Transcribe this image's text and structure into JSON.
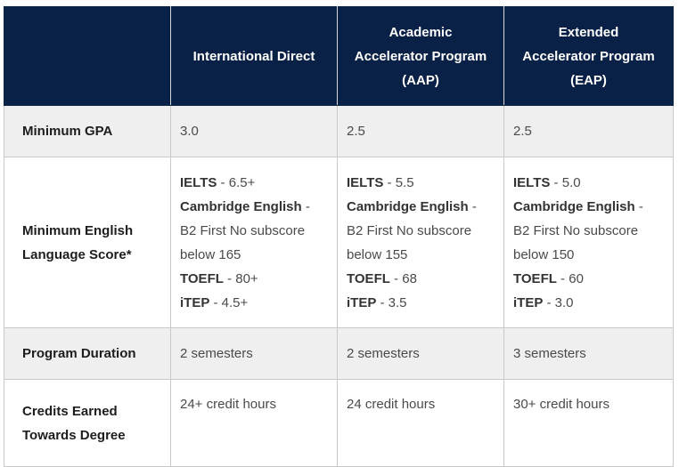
{
  "table": {
    "headers": [
      {
        "lines": [
          ""
        ]
      },
      {
        "lines": [
          "International Direct"
        ]
      },
      {
        "lines": [
          "Academic",
          "Accelerator Program",
          "(AAP)"
        ]
      },
      {
        "lines": [
          "Extended",
          "Accelerator Program",
          "(EAP)"
        ]
      }
    ],
    "rows": {
      "gpa": {
        "label": "Minimum GPA",
        "values": [
          "3.0",
          "2.5",
          "2.5"
        ]
      },
      "english": {
        "label_lines": [
          "Minimum English",
          "Language Score*"
        ],
        "columns": [
          {
            "ielts_key": "IELTS",
            "ielts_val": " - 6.5+",
            "cam_key": "Cambridge English",
            "cam_val": " -",
            "cam_line2": "B2 First No subscore",
            "cam_line3": "below 165",
            "toefl_key": "TOEFL",
            "toefl_val": " - 80+",
            "itep_key": "iTEP",
            "itep_val": " - 4.5+"
          },
          {
            "ielts_key": "IELTS",
            "ielts_val": " - 5.5",
            "cam_key": "Cambridge English",
            "cam_val": " -",
            "cam_line2": "B2 First No subscore",
            "cam_line3": "below 155",
            "toefl_key": "TOEFL",
            "toefl_val": " - 68",
            "itep_key": "iTEP",
            "itep_val": " - 3.5"
          },
          {
            "ielts_key": "IELTS",
            "ielts_val": " - 5.0",
            "cam_key": "Cambridge English",
            "cam_val": " -",
            "cam_line2": "B2 First No subscore",
            "cam_line3": "below 150",
            "toefl_key": "TOEFL",
            "toefl_val": " - 60",
            "itep_key": "iTEP",
            "itep_val": " - 3.0"
          }
        ]
      },
      "duration": {
        "label": "Program Duration",
        "values": [
          "2 semesters",
          "2 semesters",
          "3 semesters"
        ]
      },
      "credits": {
        "label_lines": [
          "Credits Earned",
          "Towards Degree"
        ],
        "values": [
          "24+ credit hours",
          "24 credit hours",
          "30+ credit hours"
        ]
      }
    }
  },
  "colors": {
    "header_bg": "#0a2147",
    "header_text": "#ffffff",
    "shaded_row_bg": "#efefef",
    "border": "#c9c9c9"
  }
}
